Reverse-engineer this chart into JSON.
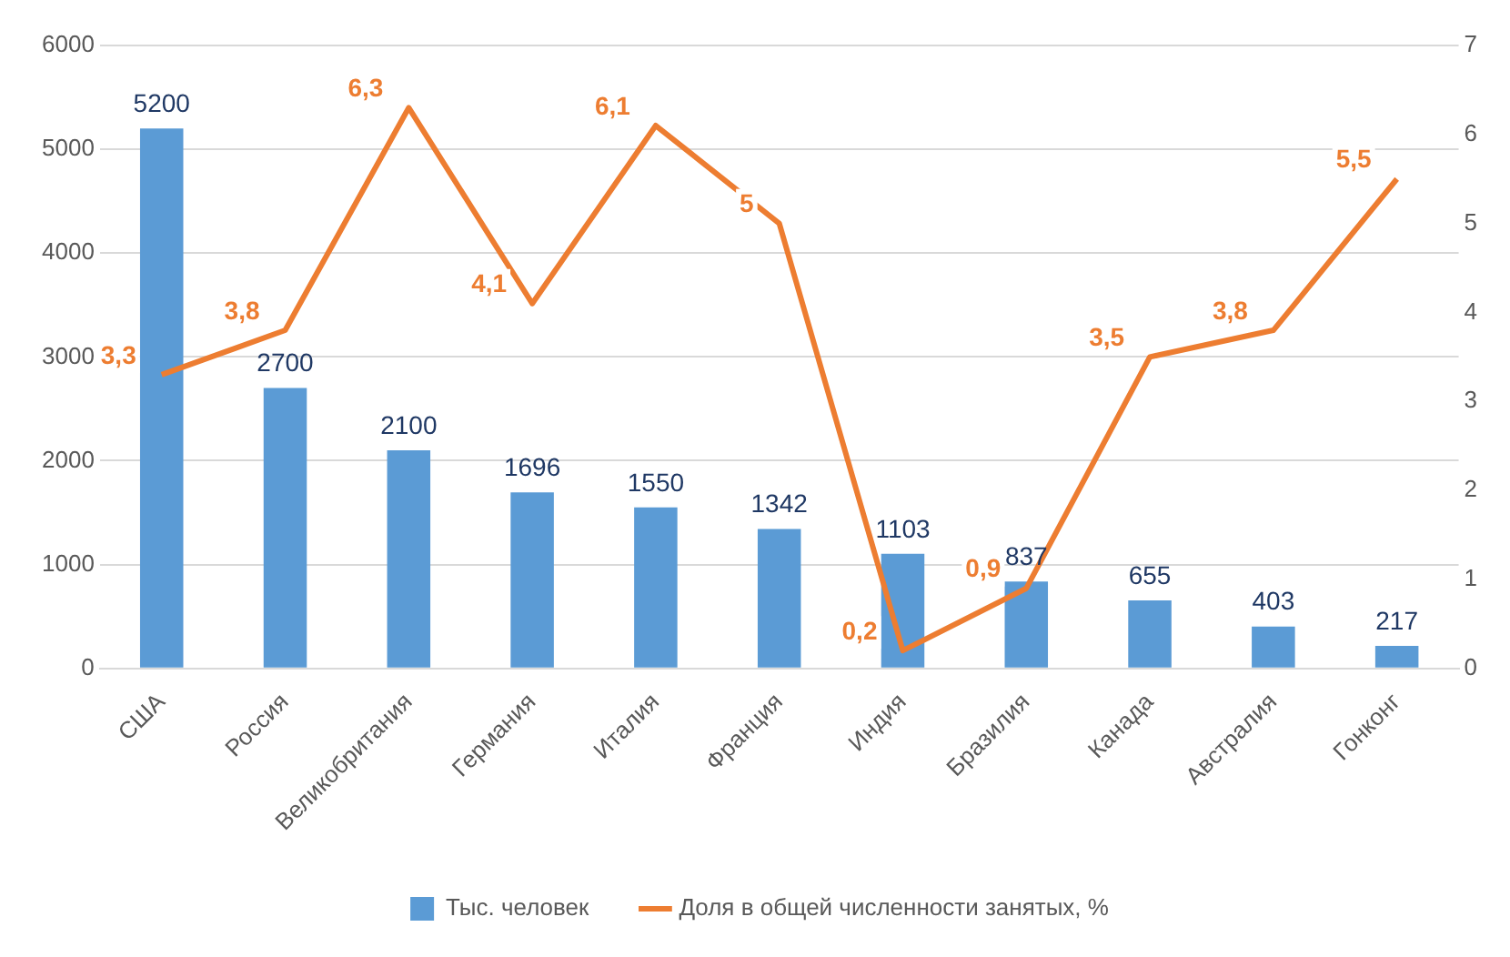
{
  "chart_data": {
    "type": "bar",
    "categories": [
      "США",
      "Россия",
      "Великобритания",
      "Германия",
      "Италия",
      "Франция",
      "Индия",
      "Бразилия",
      "Канада",
      "Австралия",
      "Гонконг"
    ],
    "series": [
      {
        "name": "Тыс. человек",
        "color": "#5b9bd5",
        "values": [
          5200,
          2700,
          2100,
          1696,
          1550,
          1342,
          1103,
          837,
          655,
          403,
          217
        ],
        "value_labels": [
          "5200",
          "2700",
          "2100",
          "1696",
          "1550",
          "1342",
          "1103",
          "837",
          "655",
          "403",
          "217"
        ]
      },
      {
        "name": "Доля в общей численности занятых, %",
        "type": "line",
        "axis": "y2",
        "color": "#ed7d31",
        "values": [
          3.3,
          3.8,
          6.3,
          4.1,
          6.1,
          5,
          0.2,
          0.9,
          3.5,
          3.8,
          5.5
        ],
        "value_labels": [
          "3,3",
          "3,8",
          "6,3",
          "4,1",
          "6,1",
          "5",
          "0,2",
          "0,9",
          "3,5",
          "3,8",
          "5,5"
        ]
      }
    ],
    "ylim": [
      0,
      6000
    ],
    "yticks": [
      0,
      1000,
      2000,
      3000,
      4000,
      5000,
      6000
    ],
    "y2lim": [
      0,
      7
    ],
    "y2ticks": [
      0,
      1,
      2,
      3,
      4,
      5,
      6,
      7
    ],
    "grid": "y",
    "legend": "bottom"
  }
}
